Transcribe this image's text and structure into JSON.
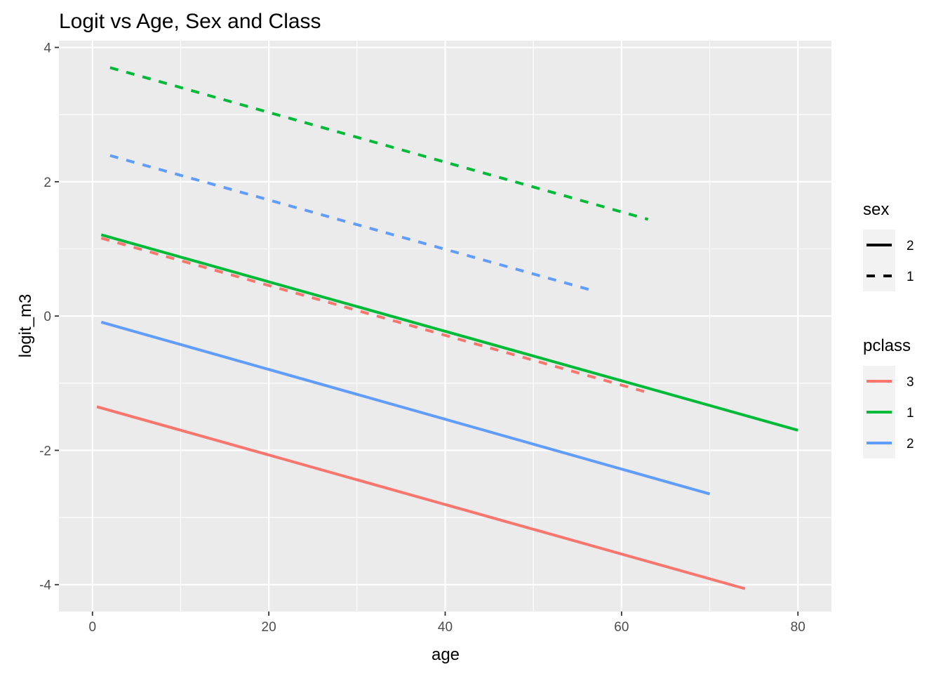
{
  "chart_data": {
    "type": "line",
    "title": "Logit vs Age, Sex and Class",
    "xlabel": "age",
    "ylabel": "logit_m3",
    "xlim": [
      -3.8,
      83.8
    ],
    "ylim": [
      -4.4,
      4.1
    ],
    "x_ticks": [
      0,
      20,
      40,
      60,
      80
    ],
    "x_tick_labels": [
      "0",
      "20",
      "40",
      "60",
      "80"
    ],
    "y_ticks": [
      -4,
      -2,
      0,
      2,
      4
    ],
    "y_tick_labels": [
      "-4",
      "-2",
      "0",
      "2",
      "4"
    ],
    "grid": true,
    "background": "#ebebeb",
    "legend_position": "right",
    "legends": [
      {
        "title": "sex",
        "key": "linetype",
        "entries": [
          {
            "label": "2",
            "linetype": "solid"
          },
          {
            "label": "1",
            "linetype": "dashed"
          }
        ]
      },
      {
        "title": "pclass",
        "key": "color",
        "entries": [
          {
            "label": "3",
            "color": "#f8766d"
          },
          {
            "label": "1",
            "color": "#00ba38"
          },
          {
            "label": "2",
            "color": "#619cff"
          }
        ]
      }
    ],
    "series": [
      {
        "pclass": "1",
        "sex": "1",
        "color": "#00ba38",
        "linetype": "dashed",
        "x": [
          2,
          63
        ],
        "y": [
          3.7,
          1.44
        ]
      },
      {
        "pclass": "2",
        "sex": "1",
        "color": "#619cff",
        "linetype": "dashed",
        "x": [
          2,
          57
        ],
        "y": [
          2.39,
          0.37
        ]
      },
      {
        "pclass": "3",
        "sex": "1",
        "color": "#f8766d",
        "linetype": "dashed",
        "x": [
          1,
          63
        ],
        "y": [
          1.16,
          -1.14
        ]
      },
      {
        "pclass": "1",
        "sex": "2",
        "color": "#00ba38",
        "linetype": "solid",
        "x": [
          1,
          80
        ],
        "y": [
          1.21,
          -1.7
        ]
      },
      {
        "pclass": "2",
        "sex": "2",
        "color": "#619cff",
        "linetype": "solid",
        "x": [
          1,
          70
        ],
        "y": [
          -0.09,
          -2.65
        ]
      },
      {
        "pclass": "3",
        "sex": "2",
        "color": "#f8766d",
        "linetype": "solid",
        "x": [
          0.5,
          74
        ],
        "y": [
          -1.35,
          -4.06
        ]
      }
    ]
  }
}
